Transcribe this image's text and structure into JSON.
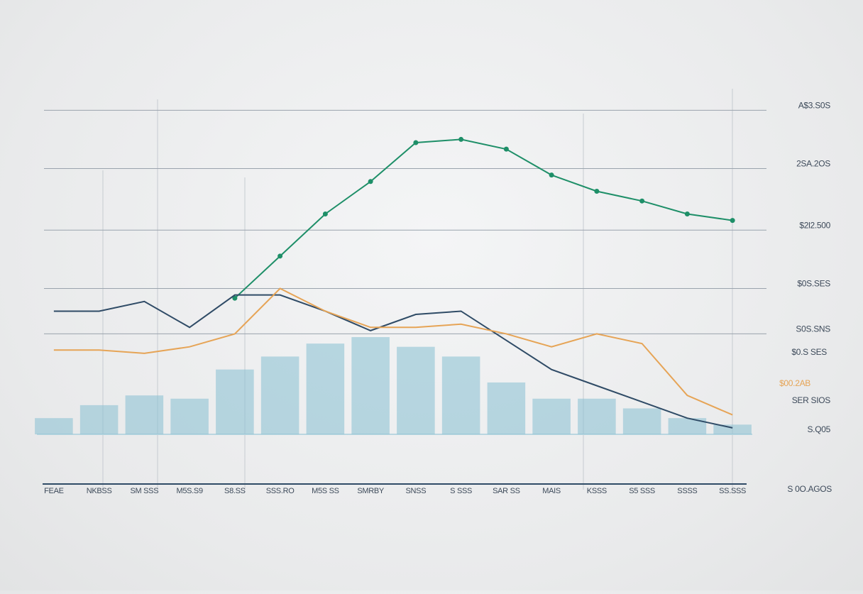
{
  "chart_data": {
    "type": "line",
    "categories": [
      "FEAE",
      "NKBSS",
      "SM SSS",
      "M5S.S9",
      "S8.SS",
      "SSS.RO",
      "M5S SS",
      "SMRBY",
      "SNSS",
      "S SSS",
      "SAR SS",
      "MAIS",
      "KSSS",
      "S5 SSS",
      "SSSS",
      "SS.SSS"
    ],
    "series": [
      {
        "name": "green",
        "color": "#1e8f68",
        "values": [
          null,
          null,
          null,
          null,
          42,
          55,
          68,
          78,
          90,
          91,
          88,
          80,
          75,
          72,
          68,
          66
        ]
      },
      {
        "name": "navy",
        "color": "#2f4b66",
        "values": [
          38,
          38,
          41,
          33,
          43,
          43,
          38,
          32,
          37,
          38,
          29,
          20,
          15,
          10,
          5,
          2
        ]
      },
      {
        "name": "orange",
        "color": "#e6a456",
        "values": [
          26,
          26,
          25,
          27,
          31,
          45,
          38,
          33,
          33,
          34,
          31,
          27,
          31,
          28,
          12,
          6
        ]
      }
    ],
    "bars": {
      "color": "#86bfd2",
      "values": [
        5,
        9,
        12,
        11,
        20,
        24,
        28,
        30,
        27,
        24,
        16,
        11,
        11,
        8,
        5,
        3
      ]
    },
    "ylim": [
      0,
      120
    ],
    "yticks": [
      {
        "value": 100,
        "label": "A$3.S0S"
      },
      {
        "value": 82,
        "label": "2SA.2OS"
      },
      {
        "value": 63,
        "label": "$2l2.500"
      },
      {
        "value": 45,
        "label": "$0S.SES"
      },
      {
        "value": 31,
        "label": "S0S.SNS"
      },
      {
        "value": 0,
        "label": "S.Q05"
      }
    ],
    "annotations": [
      "$0.S SES",
      "$00.2AB",
      "SER SIOS",
      "S 0O.AGOS"
    ],
    "grid": true
  }
}
